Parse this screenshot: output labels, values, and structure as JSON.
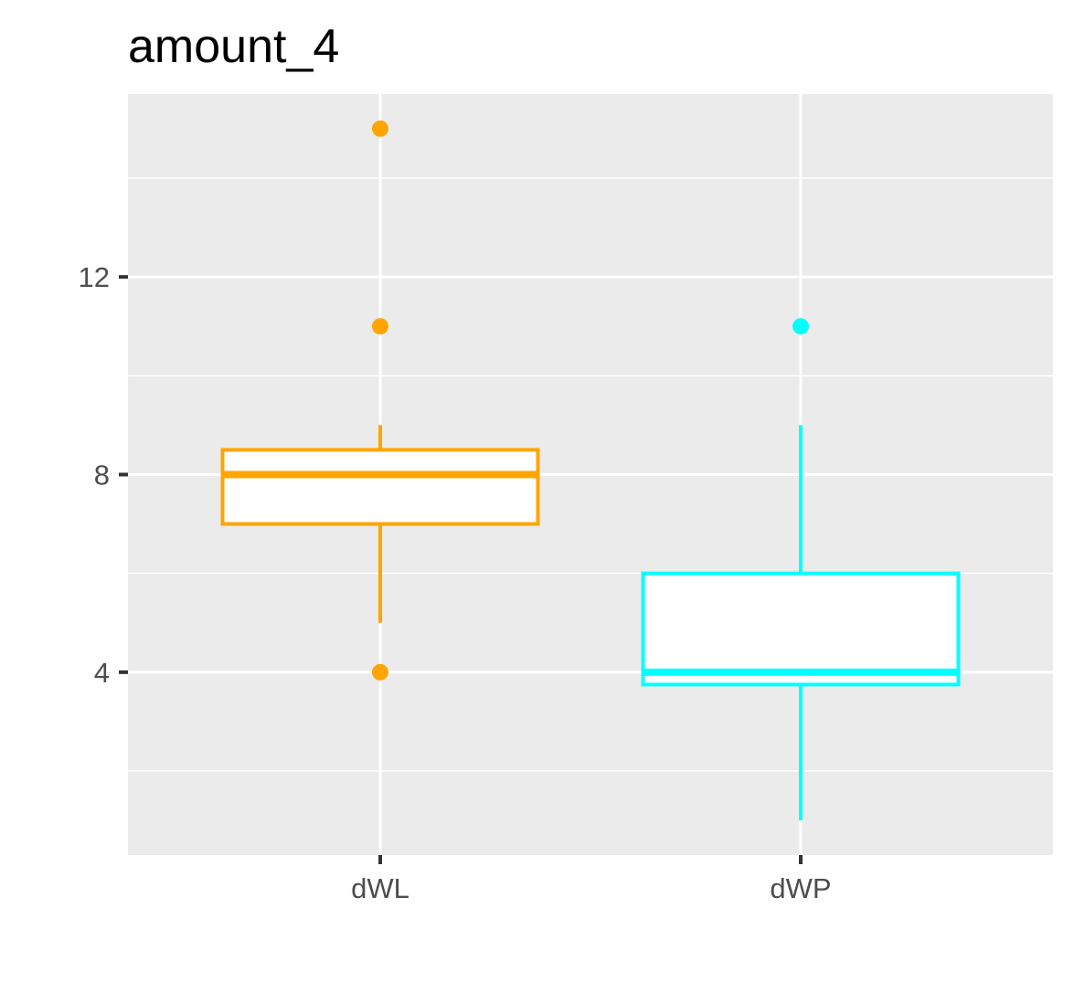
{
  "chart_data": {
    "type": "boxplot",
    "title": "amount_4",
    "xlabel": "",
    "ylabel": "",
    "categories": [
      "dWL",
      "dWP"
    ],
    "ylim": [
      0.3,
      15.7
    ],
    "yticks": [
      4,
      8,
      12
    ],
    "ytick_labels": [
      "4",
      "8",
      "12"
    ],
    "grid": true,
    "legend": "none",
    "background": "#ebebeb",
    "boxes": [
      {
        "category": "dWL",
        "color": "#ffa500",
        "whisker_low": 5,
        "q1": 7,
        "median": 8,
        "q3": 8.5,
        "whisker_high": 9,
        "outliers": [
          4,
          11,
          15
        ]
      },
      {
        "category": "dWP",
        "color": "#00ffff",
        "whisker_low": 1,
        "q1": 3.75,
        "median": 4,
        "q3": 6,
        "whisker_high": 9,
        "outliers": [
          11
        ]
      }
    ]
  }
}
